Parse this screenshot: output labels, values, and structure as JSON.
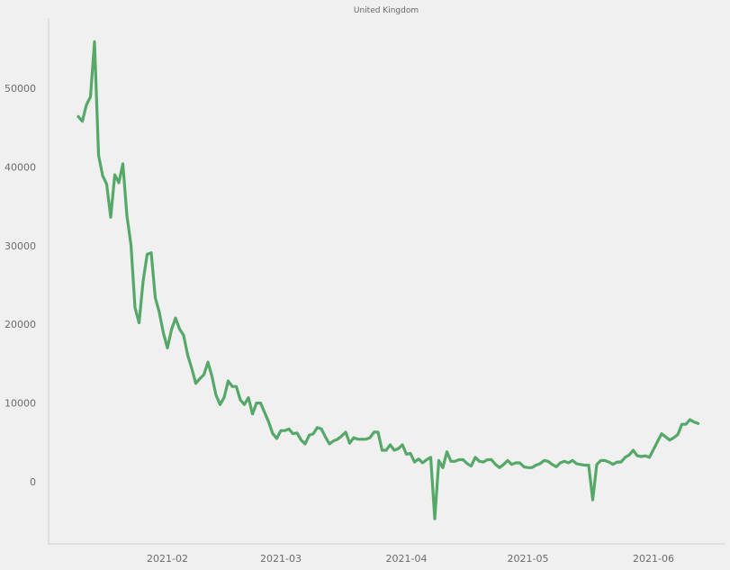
{
  "chart_data": {
    "type": "line",
    "title": "United Kingdom",
    "xlabel": "",
    "ylabel": "",
    "x_start": "2021-01-10",
    "x_ticks": [
      "2021-02",
      "2021-03",
      "2021-04",
      "2021-05",
      "2021-06"
    ],
    "y_ticks": [
      0,
      10000,
      20000,
      30000,
      40000,
      50000
    ],
    "ylim": [
      -7800,
      59000
    ],
    "grid": false,
    "series": [
      {
        "color": "#55a868",
        "values": [
          46400,
          45800,
          47900,
          48900,
          55900,
          41500,
          38900,
          37800,
          33600,
          39000,
          38000,
          40400,
          33800,
          30100,
          22100,
          20200,
          25500,
          28900,
          29100,
          23400,
          21500,
          18900,
          17000,
          19300,
          20800,
          19400,
          18600,
          16100,
          14400,
          12500,
          13100,
          13600,
          15200,
          13400,
          11000,
          9800,
          10700,
          12800,
          12100,
          12100,
          10400,
          9800,
          10700,
          8600,
          10000,
          10000,
          8800,
          7600,
          6100,
          5500,
          6500,
          6500,
          6700,
          6100,
          6200,
          5300,
          4800,
          5900,
          6100,
          6900,
          6700,
          5700,
          4800,
          5200,
          5400,
          5800,
          6300,
          4900,
          5600,
          5400,
          5400,
          5400,
          5600,
          6300,
          6300,
          4000,
          4000,
          4700,
          4000,
          4200,
          4700,
          3500,
          3600,
          2500,
          2900,
          2400,
          2800,
          3100,
          -4700,
          2700,
          1800,
          3800,
          2600,
          2600,
          2800,
          2800,
          2300,
          2000,
          3100,
          2600,
          2500,
          2800,
          2800,
          2200,
          1800,
          2200,
          2700,
          2200,
          2400,
          2400,
          1900,
          1800,
          1800,
          2100,
          2300,
          2700,
          2600,
          2200,
          1900,
          2400,
          2600,
          2400,
          2700,
          2300,
          2200,
          2100,
          2100,
          -2300,
          2200,
          2700,
          2700,
          2500,
          2200,
          2500,
          2500,
          3100,
          3400,
          4000,
          3300,
          3200,
          3300,
          3100,
          4100,
          5100,
          6100,
          5700,
          5300,
          5600,
          6000,
          7300,
          7300,
          7900,
          7600,
          7400
        ]
      }
    ]
  }
}
